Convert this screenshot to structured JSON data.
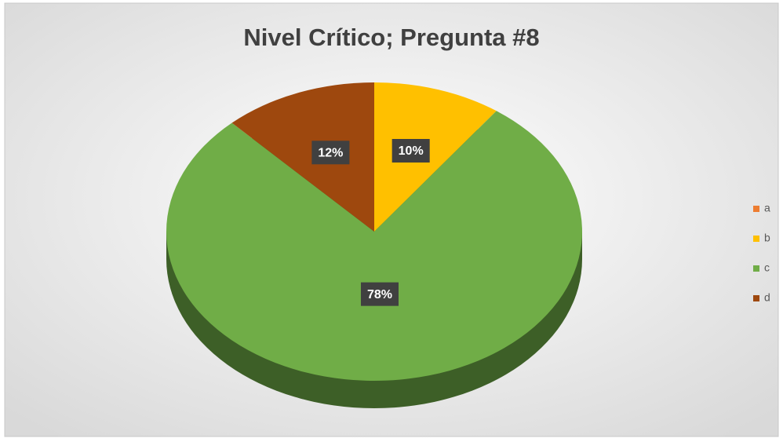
{
  "chart_data": {
    "type": "pie",
    "title": "Nivel Crítico; Pregunta #8",
    "categories": [
      "a",
      "b",
      "c",
      "d"
    ],
    "values": [
      0,
      10,
      78,
      12
    ],
    "value_labels": [
      null,
      "10%",
      "78%",
      "12%"
    ],
    "colors": [
      "#ed7d31",
      "#ffc000",
      "#70ad47",
      "#9e480e"
    ],
    "legend": "right"
  }
}
